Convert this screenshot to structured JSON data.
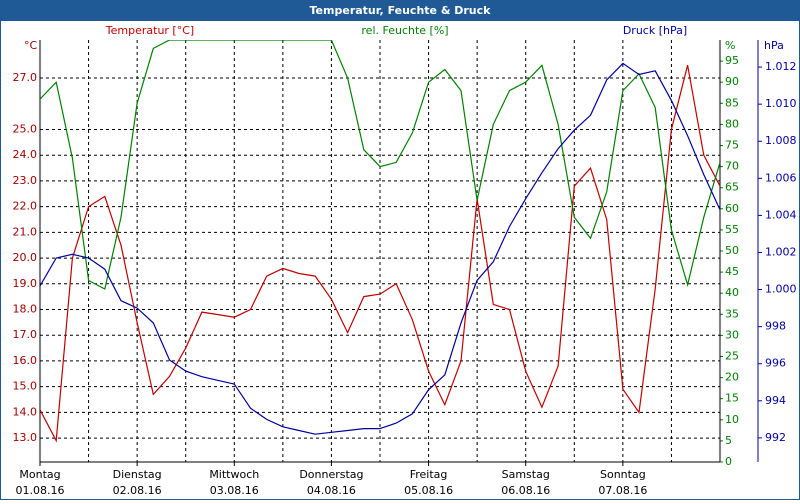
{
  "chart_data": {
    "type": "line",
    "title": "Temperatur, Feuchte & Druck",
    "ylabel": "°C",
    "y2label": "%",
    "y3label": "hPa",
    "x": [
      0,
      4,
      8,
      12,
      16,
      20,
      24,
      28,
      32,
      36,
      40,
      44,
      48,
      52,
      56,
      60,
      64,
      68,
      72,
      76,
      80,
      84,
      88,
      92,
      96,
      100,
      104,
      108,
      112,
      116,
      120,
      124,
      128,
      132,
      136,
      140,
      144,
      148,
      152,
      156,
      160,
      164,
      168
    ],
    "xlim": [
      0,
      168
    ],
    "xticks": [
      {
        "value": 0,
        "label": "Montag",
        "date": "01.08.16"
      },
      {
        "value": 24,
        "label": "Dienstag",
        "date": "02.08.16"
      },
      {
        "value": 48,
        "label": "Mittwoch",
        "date": "03.08.16"
      },
      {
        "value": 72,
        "label": "Donnerstag",
        "date": "04.08.16"
      },
      {
        "value": 96,
        "label": "Freitag",
        "date": "05.08.16"
      },
      {
        "value": 120,
        "label": "Samstag",
        "date": "06.08.16"
      },
      {
        "value": 144,
        "label": "Sonntag",
        "date": "07.08.16"
      }
    ],
    "xgrid": [
      12,
      24,
      36,
      48,
      60,
      72,
      84,
      96,
      108,
      120,
      132,
      144,
      156
    ],
    "ylim": [
      12.07,
      28.48
    ],
    "yticks": [
      {
        "value": 13,
        "label": "13.0"
      },
      {
        "value": 14,
        "label": "14.0"
      },
      {
        "value": 15,
        "label": "15.0"
      },
      {
        "value": 16,
        "label": "16.0"
      },
      {
        "value": 17,
        "label": "17.0"
      },
      {
        "value": 18,
        "label": "18.0"
      },
      {
        "value": 19,
        "label": "19.0"
      },
      {
        "value": 20,
        "label": "20.0"
      },
      {
        "value": 21,
        "label": "21.0"
      },
      {
        "value": 22,
        "label": "22.0"
      },
      {
        "value": 23,
        "label": "23.0"
      },
      {
        "value": 24,
        "label": "24.0"
      },
      {
        "value": 25,
        "label": "25.0"
      },
      {
        "value": 27,
        "label": "27.0"
      }
    ],
    "y2lim": [
      0,
      100
    ],
    "y2ticks": [
      0,
      5,
      10,
      15,
      20,
      25,
      30,
      35,
      40,
      45,
      50,
      55,
      60,
      65,
      70,
      75,
      80,
      85,
      90,
      95
    ],
    "y3lim": [
      990.7,
      1013.46
    ],
    "y3ticks": [
      992,
      994,
      996,
      998,
      {
        "value": 1000,
        "label": "1.000"
      },
      {
        "value": 1002,
        "label": "1.002"
      },
      {
        "value": 1004,
        "label": "1.004"
      },
      {
        "value": 1006,
        "label": "1.006"
      },
      {
        "value": 1008,
        "label": "1.008"
      },
      {
        "value": 1010,
        "label": "1.010"
      },
      {
        "value": 1012,
        "label": "1.012"
      }
    ],
    "grid": true,
    "series": [
      {
        "name": "Temperatur [°C]",
        "color": "#c00000",
        "axis": "y",
        "values": [
          14.1,
          12.9,
          20.0,
          22.0,
          22.4,
          20.5,
          17.5,
          14.7,
          15.4,
          16.5,
          17.9,
          17.8,
          17.7,
          18.0,
          19.3,
          19.6,
          19.4,
          19.3,
          18.4,
          17.1,
          18.5,
          18.6,
          19.0,
          17.6,
          15.6,
          14.3,
          16.0,
          22.3,
          18.2,
          18.0,
          15.6,
          14.2,
          15.8,
          22.8,
          23.5,
          21.5,
          14.9,
          14.0,
          18.8,
          25.0,
          27.5,
          24.0,
          22.8
        ]
      },
      {
        "name": "rel. Feuchte [%]",
        "color": "#008000",
        "axis": "y2",
        "values": [
          86,
          90,
          72,
          43,
          41,
          58,
          85,
          98,
          100,
          100,
          100,
          100,
          100,
          100,
          100,
          100,
          100,
          100,
          100,
          91,
          74,
          70,
          71,
          78,
          90,
          93,
          88,
          62,
          80,
          88,
          90,
          94,
          80,
          58,
          53,
          64,
          88,
          92,
          84,
          55,
          42,
          58,
          71
        ]
      },
      {
        "name": "Druck [hPa]",
        "color": "#0000a0",
        "axis": "y3",
        "values": [
          1000.2,
          1001.7,
          1001.9,
          1001.7,
          1001.1,
          999.4,
          999.0,
          998.2,
          996.2,
          995.6,
          995.3,
          995.1,
          994.9,
          993.6,
          993.0,
          992.6,
          992.4,
          992.2,
          992.3,
          992.4,
          992.5,
          992.5,
          992.8,
          993.3,
          994.6,
          995.4,
          998.2,
          1000.5,
          1001.5,
          1003.4,
          1004.9,
          1006.3,
          1007.6,
          1008.6,
          1009.4,
          1011.3,
          1012.2,
          1011.6,
          1011.8,
          1010.2,
          1008.3,
          1006.2,
          1004.3
        ]
      }
    ]
  }
}
